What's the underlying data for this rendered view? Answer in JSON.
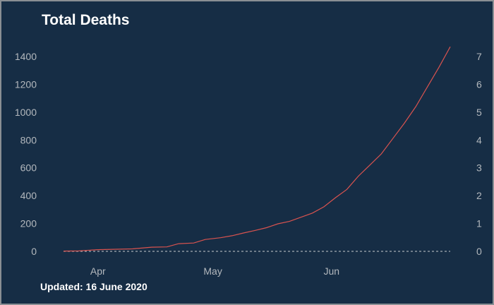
{
  "chart_data": {
    "type": "line",
    "title": "Total Deaths",
    "footnote": "Updated: 16 June 2020",
    "x_ticks": [
      {
        "label": "Apr",
        "date": "2020-04-01"
      },
      {
        "label": "May",
        "date": "2020-05-01"
      },
      {
        "label": "Jun",
        "date": "2020-06-01"
      }
    ],
    "xlim": [
      "2020-03-23",
      "2020-06-18"
    ],
    "y_left": {
      "ylim": [
        0,
        1400
      ],
      "ticks": [
        0,
        200,
        400,
        600,
        800,
        1000,
        1200,
        1400
      ]
    },
    "y_right": {
      "ylim": [
        0,
        7
      ],
      "ticks": [
        0,
        1,
        2,
        3,
        4,
        5,
        6,
        7
      ]
    },
    "reference_line": {
      "axis": "right",
      "value": 0,
      "style": "dashed",
      "color": "#c8ccd0"
    },
    "series": [
      {
        "axis": "left",
        "color": "#d9534f",
        "points": [
          {
            "date": "2020-03-23",
            "value": 2
          },
          {
            "date": "2020-03-27",
            "value": 3
          },
          {
            "date": "2020-04-01",
            "value": 12
          },
          {
            "date": "2020-04-06",
            "value": 15
          },
          {
            "date": "2020-04-10",
            "value": 18
          },
          {
            "date": "2020-04-15",
            "value": 30
          },
          {
            "date": "2020-04-19",
            "value": 32
          },
          {
            "date": "2020-04-22",
            "value": 55
          },
          {
            "date": "2020-04-26",
            "value": 60
          },
          {
            "date": "2020-04-29",
            "value": 85
          },
          {
            "date": "2020-05-03",
            "value": 98
          },
          {
            "date": "2020-05-06",
            "value": 112
          },
          {
            "date": "2020-05-09",
            "value": 132
          },
          {
            "date": "2020-05-12",
            "value": 150
          },
          {
            "date": "2020-05-15",
            "value": 170
          },
          {
            "date": "2020-05-18",
            "value": 198
          },
          {
            "date": "2020-05-21",
            "value": 215
          },
          {
            "date": "2020-05-24",
            "value": 245
          },
          {
            "date": "2020-05-27",
            "value": 275
          },
          {
            "date": "2020-05-30",
            "value": 320
          },
          {
            "date": "2020-06-02",
            "value": 385
          },
          {
            "date": "2020-06-05",
            "value": 445
          },
          {
            "date": "2020-06-08",
            "value": 540
          },
          {
            "date": "2020-06-11",
            "value": 620
          },
          {
            "date": "2020-06-14",
            "value": 700
          },
          {
            "date": "2020-06-17",
            "value": 810
          },
          {
            "date": "2020-06-20",
            "value": 920
          },
          {
            "date": "2020-06-23",
            "value": 1040
          },
          {
            "date": "2020-06-26",
            "value": 1180
          },
          {
            "date": "2020-06-29",
            "value": 1320
          },
          {
            "date": "2020-07-02",
            "value": 1470
          }
        ]
      }
    ],
    "grid": false
  }
}
